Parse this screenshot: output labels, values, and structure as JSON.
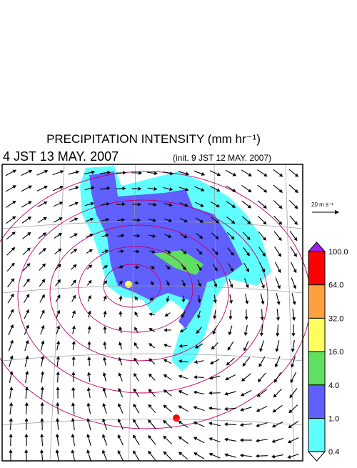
{
  "header": {
    "title": "PRECIPITATION INTENSITY (mm hr⁻¹)",
    "valid_time": "4 JST 13 MAY. 2007",
    "init_time": "(init. 9 JST 12 MAY. 2007)"
  },
  "vector_key": {
    "label": "20 m s⁻¹"
  },
  "colorbar": {
    "over_color": "#a020f0",
    "under_color": "#ffffff",
    "levels": [
      {
        "label": "100.0",
        "color": "#ff0000"
      },
      {
        "label": "64.0",
        "color": "#ffa040"
      },
      {
        "label": "32.0",
        "color": "#ffff60"
      },
      {
        "label": "16.0",
        "color": "#60e060"
      },
      {
        "label": "4.0",
        "color": "#6060ff"
      },
      {
        "label": "1.0",
        "color": "#60ffff"
      },
      {
        "label": "0.4",
        "color": "#ffffff"
      }
    ]
  }
}
